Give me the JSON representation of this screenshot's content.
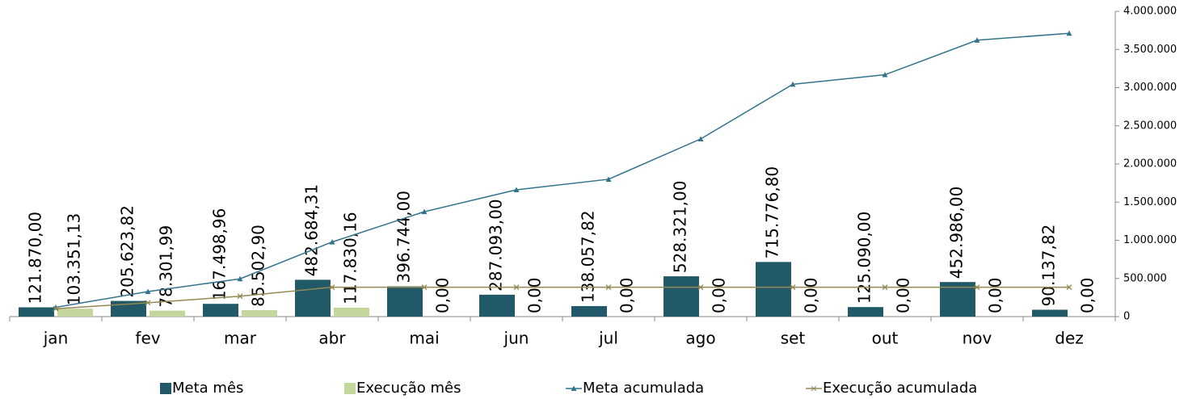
{
  "chart_data": {
    "type": "bar_line",
    "categories": [
      "jan",
      "fev",
      "mar",
      "abr",
      "mai",
      "jun",
      "jul",
      "ago",
      "set",
      "out",
      "nov",
      "dez"
    ],
    "series": [
      {
        "name": "Meta mês",
        "kind": "bar",
        "color": "#215968",
        "values": [
          121870,
          205623.82,
          167498.96,
          482684.31,
          396744,
          287093,
          138057.82,
          528321,
          715776.8,
          125090,
          452986,
          90137.82
        ],
        "value_labels": [
          "121.870,00",
          "205.623,82",
          "167.498,96",
          "482.684,31",
          "396.744,00",
          "287.093,00",
          "138.057,82",
          "528.321,00",
          "715.776,80",
          "125.090,00",
          "452.986,00",
          "90.137,82"
        ]
      },
      {
        "name": "Execução mês",
        "kind": "bar",
        "color": "#c3d69b",
        "values": [
          103351.13,
          78301.99,
          85502.9,
          117830.16,
          0,
          0,
          0,
          0,
          0,
          0,
          0,
          0
        ],
        "value_labels": [
          "103.351,13",
          "78.301,99",
          "85.502,90",
          "117.830,16",
          "0,00",
          "0,00",
          "0,00",
          "0,00",
          "0,00",
          "0,00",
          "0,00",
          "0,00"
        ]
      },
      {
        "name": "Meta acumulada",
        "kind": "line",
        "marker": "triangle",
        "color": "#31748c",
        "values": [
          121870,
          327493.82,
          494992.78,
          977677.09,
          1374421.09,
          1661514.09,
          1799571.91,
          2327892.91,
          3043669.71,
          3168759.71,
          3621745.71,
          3711883.53
        ]
      },
      {
        "name": "Execução acumulada",
        "kind": "line",
        "marker": "x",
        "color": "#938953",
        "values": [
          103351.13,
          181653.12,
          267156.02,
          384986.18,
          384986.18,
          384986.18,
          384986.18,
          384986.18,
          384986.18,
          384986.18,
          384986.18,
          384986.18
        ]
      }
    ],
    "ylim": [
      0,
      4000000
    ],
    "yticks": [
      0,
      {
        "value": 500000,
        "label": "500.000"
      },
      {
        "value": 1000000,
        "label": "1.000.000"
      },
      {
        "value": 1500000,
        "label": "1.500.000"
      },
      {
        "value": 2000000,
        "label": "2.000.000"
      },
      {
        "value": 2500000,
        "label": "2.500.000"
      },
      {
        "value": 3000000,
        "label": "3.000.000"
      },
      {
        "value": 3500000,
        "label": "3.500.000"
      },
      {
        "value": 4000000,
        "label": "4.000.000"
      }
    ],
    "yaxis_side": "right",
    "grid": false
  }
}
